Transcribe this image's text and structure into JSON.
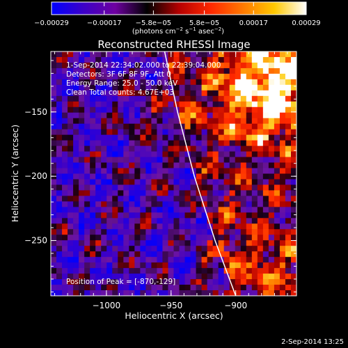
{
  "chart_data": {
    "type": "heatmap",
    "title": "Reconstructed RHESSI Image",
    "xlabel": "Heliocentric X (arcsec)",
    "ylabel": "Heliocentric Y (arcsec)",
    "xlim": [
      -1043,
      -853
    ],
    "ylim": [
      -293,
      -103
    ],
    "x_ticks": [
      -1000,
      -950,
      -900
    ],
    "y_ticks": [
      -150,
      -200,
      -250
    ],
    "x_tick_labels": [
      "−1000",
      "−950",
      "−900"
    ],
    "y_tick_labels": [
      "−150",
      "−200",
      "−250"
    ],
    "grid": false,
    "colorbar": {
      "min": -0.00029,
      "max": 0.00029,
      "tick_labels": [
        "−0.00029",
        "−0.00017",
        "−5.8e−05",
        "5.8e−05",
        "0.00017",
        "0.00029"
      ],
      "tick_values": [
        -0.00029,
        -0.00017,
        -5.8e-05,
        5.8e-05,
        0.00017,
        0.00029
      ],
      "units_main": "(photons cm",
      "units_exp1": "−2",
      "units_mid": " s",
      "units_exp2": "−1",
      "units_end": " asec",
      "units_exp3": "−2",
      "units_close": ")",
      "colors": [
        "#0000ff",
        "#3c00c8",
        "#6e00a0",
        "#000000",
        "#b40000",
        "#ff2800",
        "#ff7800",
        "#ffc800",
        "#ffffff"
      ]
    },
    "annotations": [
      "1-Sep-2014 22:34:02.000 to 22:39:04.000",
      "Detectors: 3F 6F 8F 9F, Att 0",
      "Energy Range: 25.0 - 50.0 keV",
      "Clean    Total counts: 4.67E+03"
    ],
    "peak_label": "Position of Peak = [-870,-129]",
    "peak_position": [
      -870,
      -129
    ],
    "limb_curve": [
      [
        -955,
        -103
      ],
      [
        -945,
        -150
      ],
      [
        -932,
        -200
      ],
      [
        -916,
        -250
      ],
      [
        -900,
        -293
      ]
    ]
  },
  "footer": {
    "timestamp": "2-Sep-2014 13:25"
  }
}
